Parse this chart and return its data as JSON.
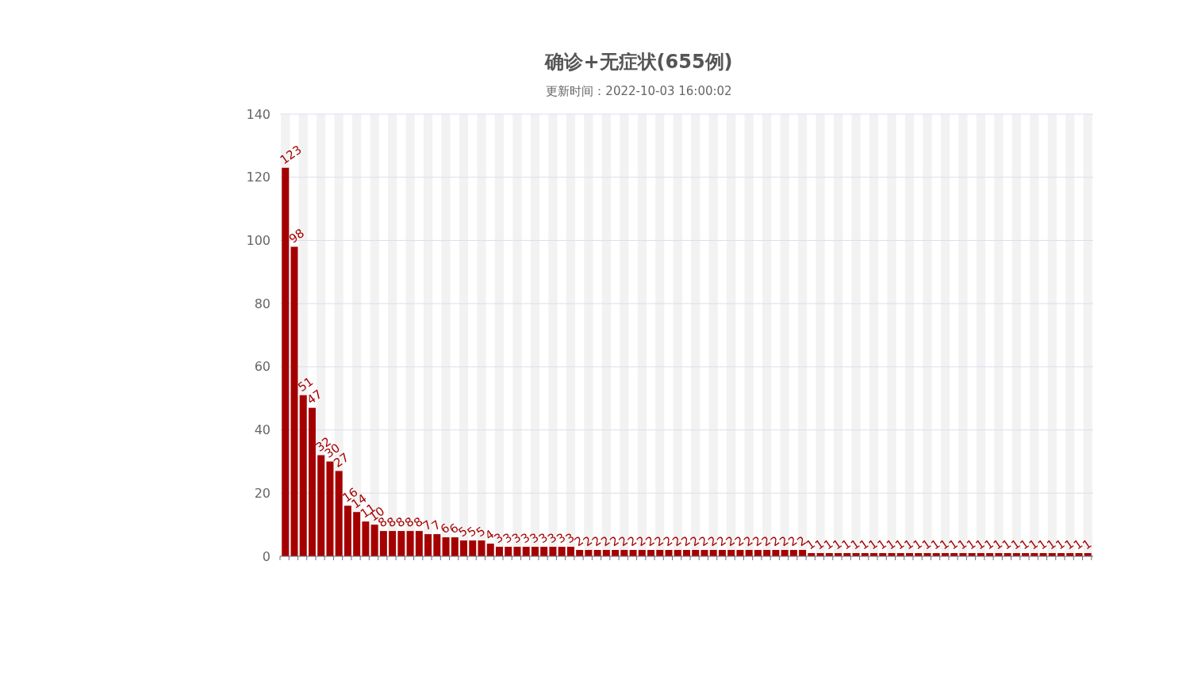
{
  "chart_data": {
    "type": "bar",
    "title": "确诊+无症状(655例)",
    "subtitle": "更新时间：2022-10-03 16:00:02",
    "categories": [
      null,
      null,
      null,
      null,
      null,
      null,
      null,
      null,
      null,
      null,
      null,
      null,
      null,
      null,
      null,
      null,
      null,
      null,
      null,
      null,
      null,
      null,
      null,
      null,
      null,
      null,
      null,
      null,
      null,
      null,
      null,
      null,
      null,
      null,
      null,
      null,
      null,
      null,
      null,
      null,
      null,
      null,
      null,
      null,
      null,
      null,
      null,
      null,
      null,
      null,
      null,
      null,
      null,
      null,
      null,
      null,
      null,
      null,
      null,
      null,
      null,
      null,
      null,
      null,
      null,
      null,
      null,
      null,
      null,
      null,
      null,
      null,
      null,
      null,
      null,
      null,
      null,
      null,
      null,
      null,
      null,
      null,
      null,
      null,
      null,
      null,
      null,
      null,
      null,
      null,
      null
    ],
    "values": [
      123,
      98,
      51,
      47,
      32,
      30,
      27,
      16,
      14,
      11,
      10,
      8,
      8,
      8,
      8,
      8,
      7,
      7,
      6,
      6,
      5,
      5,
      5,
      4,
      3,
      3,
      3,
      3,
      3,
      3,
      3,
      3,
      3,
      2,
      2,
      2,
      2,
      2,
      2,
      2,
      2,
      2,
      2,
      2,
      2,
      2,
      2,
      2,
      2,
      2,
      2,
      2,
      2,
      2,
      2,
      2,
      2,
      2,
      2,
      1,
      1,
      1,
      1,
      1,
      1,
      1,
      1,
      1,
      1,
      1,
      1,
      1,
      1,
      1,
      1,
      1,
      1,
      1,
      1,
      1,
      1,
      1,
      1,
      1,
      1,
      1,
      1,
      1,
      1,
      1,
      1
    ],
    "color": "#a50000",
    "ylim": [
      0,
      140
    ],
    "yticks": [
      0,
      20,
      40,
      60,
      80,
      100,
      120,
      140
    ],
    "grid": "y",
    "data_labels": true,
    "tick_labels": "y"
  }
}
